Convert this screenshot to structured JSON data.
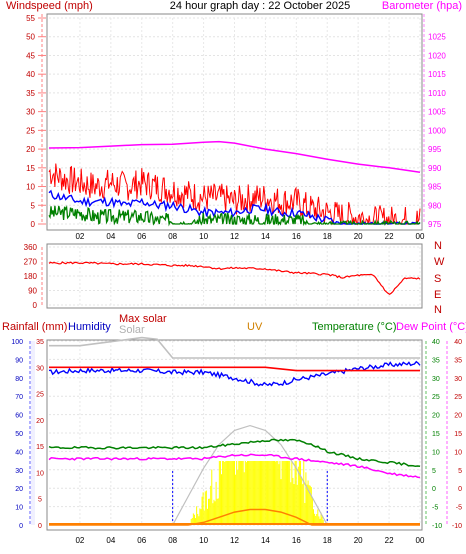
{
  "header": {
    "windspeed_label": "Windspeed (mph)",
    "title": "24 hour graph day : 22 October 2025",
    "barometer_label": "Barometer (hpa)"
  },
  "footer": {
    "rain_label": "Rainfall (mm)",
    "humidity_label": "Humidity",
    "max_solar_label": "Max solar",
    "solar_label": "Solar",
    "uv_label": "UV",
    "temp_label": "Temperature (°C)",
    "dew_label": "Dew Point (°C)"
  },
  "colors": {
    "windspeed": "#ff0000",
    "avg_wind": "#0000ff",
    "min_wind": "#008000",
    "barometer": "#ff00ff",
    "direction": "#ff0000",
    "humidity": "#0000ff",
    "temperature": "#008000",
    "dew_point": "#ff00ff",
    "max_solar": "#c0c0c0",
    "solar": "#ffff00",
    "uv": "#ff8000",
    "rain": "#ff0000"
  },
  "chart_data": [
    {
      "type": "line",
      "name_ref": "wind_baro",
      "x_ticks": [
        "02",
        "04",
        "06",
        "08",
        "10",
        "12",
        "14",
        "16",
        "18",
        "20",
        "22",
        "00"
      ],
      "x_hours": [
        2,
        4,
        6,
        8,
        10,
        12,
        14,
        16,
        18,
        20,
        22,
        24
      ],
      "ylim_left": [
        0,
        55
      ],
      "yticks_left": [
        0,
        5,
        10,
        15,
        20,
        25,
        30,
        35,
        40,
        45,
        50,
        55
      ],
      "ylim_right": [
        975,
        1030
      ],
      "yticks_right": [
        975,
        980,
        985,
        990,
        995,
        1000,
        1005,
        1010,
        1015,
        1020,
        1025
      ],
      "series": [
        {
          "key": "windspeed",
          "x": [
            0,
            1,
            2,
            3,
            4,
            5,
            6,
            7,
            8,
            9,
            10,
            11,
            12,
            13,
            14,
            15,
            16,
            17,
            18,
            19,
            20,
            21,
            22,
            23,
            24
          ],
          "values": [
            14,
            12,
            11,
            10,
            11,
            10,
            11,
            10,
            9,
            8,
            7,
            7,
            6,
            7,
            7,
            6,
            6,
            4,
            3,
            2,
            2,
            1,
            1,
            1,
            1
          ]
        },
        {
          "key": "avg_wind",
          "x": [
            0,
            1,
            2,
            3,
            4,
            5,
            6,
            7,
            8,
            9,
            10,
            11,
            12,
            13,
            14,
            15,
            16,
            17,
            18,
            19,
            20,
            21,
            22,
            23,
            24
          ],
          "values": [
            8,
            7,
            6,
            6,
            6,
            5,
            6,
            5,
            5,
            4,
            3,
            3,
            3,
            4,
            4,
            3,
            3,
            2,
            1,
            0,
            0,
            0,
            0,
            0,
            0
          ]
        },
        {
          "key": "min_wind",
          "x": [
            0,
            1,
            2,
            3,
            4,
            5,
            6,
            7,
            8,
            9,
            10,
            11,
            12,
            13,
            14,
            15,
            16,
            17,
            18,
            19,
            20,
            21,
            22,
            23,
            24
          ],
          "values": [
            3,
            3,
            3,
            2,
            2,
            2,
            2,
            1,
            1,
            0,
            1,
            1,
            1,
            1,
            1,
            1,
            1,
            0,
            0,
            0,
            0,
            0,
            0,
            0,
            0
          ]
        },
        {
          "key": "barometer",
          "x": [
            0,
            2,
            4,
            6,
            8,
            10,
            11,
            12,
            14,
            16,
            18,
            20,
            22,
            24
          ],
          "values": [
            995.3,
            995.4,
            995.8,
            996.2,
            996.3,
            996.8,
            997,
            996.6,
            995,
            993.8,
            992.3,
            991,
            990,
            988.8
          ]
        }
      ]
    },
    {
      "type": "line",
      "name_ref": "direction",
      "ylim": [
        0,
        360
      ],
      "yticks": [
        0,
        90,
        180,
        270,
        360
      ],
      "ytick_labels": [
        "0",
        "90",
        "180",
        "270",
        "360"
      ],
      "compass": [
        "N",
        "W",
        "S",
        "E",
        "N"
      ],
      "series": [
        {
          "key": "direction",
          "x": [
            0,
            2,
            4,
            6,
            8,
            9,
            10,
            11,
            12,
            14,
            15,
            16,
            18,
            19,
            20,
            21,
            22,
            23,
            24
          ],
          "values": [
            260,
            262,
            255,
            255,
            245,
            245,
            240,
            225,
            230,
            225,
            210,
            200,
            190,
            170,
            185,
            185,
            60,
            165,
            165
          ]
        }
      ]
    },
    {
      "type": "line",
      "name_ref": "weather",
      "humidity_ticks": [
        0,
        10,
        20,
        30,
        40,
        50,
        60,
        70,
        80,
        90,
        100
      ],
      "solar_ticks": [
        0,
        5,
        10,
        15,
        20,
        25,
        30,
        35
      ],
      "temp_ticks": [
        -10,
        -5,
        0,
        5,
        10,
        15,
        20,
        25,
        30,
        35,
        40
      ],
      "series": [
        {
          "key": "humidity",
          "x": [
            0,
            2,
            4,
            6,
            8,
            10,
            12,
            13,
            14,
            15,
            16,
            18,
            20,
            22,
            24
          ],
          "values": [
            83,
            84,
            84,
            84,
            83,
            83,
            80,
            78,
            76,
            77,
            79,
            82,
            85,
            87,
            88
          ]
        },
        {
          "key": "max_solar",
          "x": [
            0,
            2,
            4,
            6,
            7,
            8,
            10,
            12,
            14,
            16,
            18,
            20,
            22,
            24
          ],
          "values": [
            22,
            22,
            22.5,
            23,
            22.8,
            20.5,
            20.5,
            20.5,
            20.5,
            20.5,
            20.5,
            20.5,
            20.5,
            20.5
          ]
        },
        {
          "key": "rain_total",
          "x": [
            0,
            2,
            4,
            6,
            8,
            10,
            12,
            14,
            16,
            18,
            20,
            22,
            24
          ],
          "values": [
            24,
            24,
            24,
            24,
            24,
            24,
            24,
            24,
            23.5,
            23.5,
            23.5,
            23.5,
            23.5
          ]
        },
        {
          "key": "temperature",
          "x": [
            0,
            2,
            4,
            6,
            8,
            10,
            12,
            14,
            16,
            17,
            18,
            20,
            22,
            24
          ],
          "values": [
            11,
            11,
            11,
            11,
            11,
            11,
            12,
            13,
            13,
            12,
            10,
            8,
            7,
            6
          ]
        },
        {
          "key": "dew_point",
          "x": [
            0,
            2,
            4,
            6,
            8,
            10,
            12,
            14,
            16,
            18,
            20,
            22,
            24
          ],
          "values": [
            8,
            8,
            8,
            8,
            8,
            8,
            9,
            9,
            8,
            7,
            6,
            4,
            3
          ]
        },
        {
          "key": "uv",
          "x": [
            0,
            9,
            10,
            11,
            12,
            13,
            14,
            15,
            16,
            17,
            24
          ],
          "values": [
            0,
            0,
            0.2,
            0.6,
            1.0,
            1.2,
            1.2,
            1.0,
            0.6,
            0,
            0
          ]
        },
        {
          "key": "solar",
          "x": [
            0,
            9,
            10,
            11,
            12,
            13,
            14,
            15,
            16,
            17,
            18,
            24
          ],
          "values": [
            0,
            0,
            3,
            6,
            13,
            14,
            14,
            12,
            9,
            3,
            0,
            0
          ]
        },
        {
          "key": "solar_max_envelope",
          "x": [
            8,
            9,
            10,
            11,
            12,
            13,
            14,
            15,
            16,
            17,
            18
          ],
          "values": [
            0,
            3,
            6,
            8.5,
            10,
            10.5,
            10,
            8.5,
            6,
            3,
            0
          ]
        }
      ]
    }
  ]
}
